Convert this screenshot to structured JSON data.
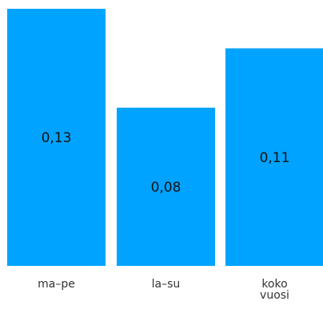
{
  "chart_data": {
    "type": "bar",
    "categories": [
      [
        "ma–pe"
      ],
      [
        "la–su"
      ],
      [
        "koko",
        "vuosi"
      ]
    ],
    "values": [
      0.13,
      0.08,
      0.11
    ],
    "value_labels": [
      "0,13",
      "0,08",
      "0,11"
    ],
    "bar_color": "#00A3FF",
    "ylim": [
      0,
      0.13
    ],
    "grid": false,
    "legend": "none",
    "title": "",
    "xlabel": "",
    "ylabel": ""
  }
}
